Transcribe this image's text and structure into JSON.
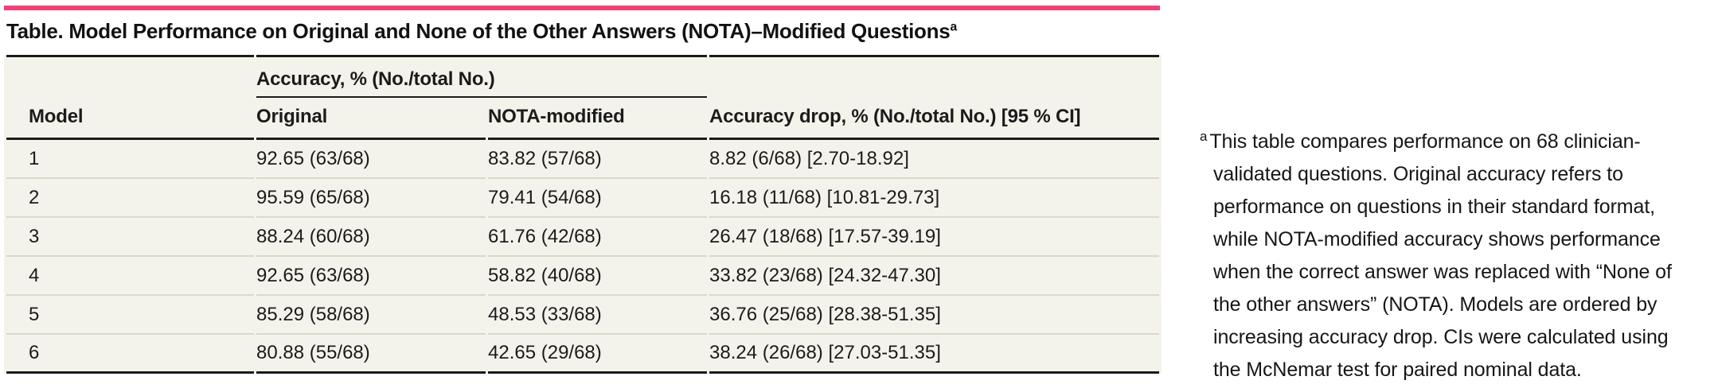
{
  "accent_color": "#ee4378",
  "table_bg": "#f4f3eb",
  "title": {
    "text": "Table. Model Performance on Original and None of the Other Answers (NOTA)–Modified Questions",
    "superscript": "a"
  },
  "table": {
    "headers": {
      "model": "Model",
      "spanner": "Accuracy, % (No./total No.)",
      "original": "Original",
      "nota_modified": "NOTA-modified",
      "accuracy_drop": "Accuracy drop, % (No./total No.) [95 % CI]"
    },
    "rows": [
      {
        "model": "1",
        "original": "92.65 (63/68)",
        "nota": "83.82 (57/68)",
        "drop": "8.82 (6/68) [2.70-18.92]"
      },
      {
        "model": "2",
        "original": "95.59 (65/68)",
        "nota": "79.41 (54/68)",
        "drop": "16.18 (11/68) [10.81-29.73]"
      },
      {
        "model": "3",
        "original": "88.24 (60/68)",
        "nota": "61.76 (42/68)",
        "drop": "26.47 (18/68) [17.57-39.19]"
      },
      {
        "model": "4",
        "original": "92.65 (63/68)",
        "nota": "58.82 (40/68)",
        "drop": "33.82 (23/68) [24.32-47.30]"
      },
      {
        "model": "5",
        "original": "85.29 (58/68)",
        "nota": "48.53 (33/68)",
        "drop": "36.76 (25/68) [28.38-51.35]"
      },
      {
        "model": "6",
        "original": "80.88 (55/68)",
        "nota": "42.65 (29/68)",
        "drop": "38.24 (26/68) [27.03-51.35]"
      }
    ]
  },
  "footnote": {
    "marker": "a",
    "text": "This table compares performance on 68 clinician-validated questions. Original accuracy refers to performance on questions in their standard format, while NOTA-modified accuracy shows performance when the correct answer was replaced with “None of the other answers” (NOTA). Models are ordered by increasing accuracy drop. CIs were calculated using the McNemar test for paired nominal data."
  }
}
